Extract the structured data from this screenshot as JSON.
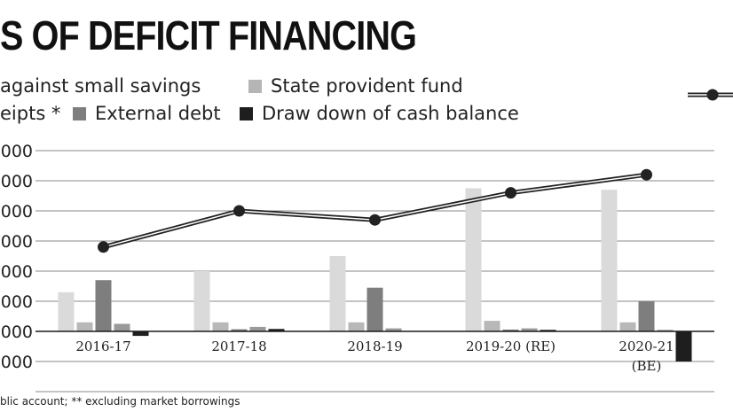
{
  "title": "S OF DEFICIT FINANCING",
  "legend": [
    {
      "key": "small_savings",
      "label": "against small savings",
      "color": "#cfcfcf"
    },
    {
      "key": "state_pf",
      "label": "State provident fund",
      "color": "#b5b5b5"
    },
    {
      "key": "other_receipts",
      "label": "eipts *",
      "color": "#a3a3a3"
    },
    {
      "key": "external_debt",
      "label": "External debt",
      "color": "#7e7e7e"
    },
    {
      "key": "cash_drawdown",
      "label": "Draw down of cash balance",
      "color": "#1e1e1e"
    }
  ],
  "footnote": "blic account; ** excluding market borrowings",
  "chart_data": {
    "type": "bar",
    "categories": [
      "2016-17",
      "2017-18",
      "2018-19",
      "2019-20 (RE)",
      "2020-21 (BE)"
    ],
    "y_tick_labels": [
      "000",
      "0000",
      "0000",
      "0000",
      "0000",
      "0000",
      "0000",
      "000",
      "",
      "0000",
      "0000"
    ],
    "series": [
      {
        "key": "small_savings",
        "name": "against small savings",
        "color": "#dadada",
        "values": [
          13,
          20,
          25,
          47.5,
          47
        ]
      },
      {
        "key": "state_pf",
        "name": "State provident fund",
        "color": "#b8b8b8",
        "values": [
          3,
          3,
          3,
          3.5,
          3
        ]
      },
      {
        "key": "external_debt",
        "name": "External debt",
        "color": "#7e7e7e",
        "values": [
          17,
          0.7,
          14.5,
          0.6,
          10
        ]
      },
      {
        "key": "other_receipts",
        "name": "eipts *",
        "color": "#9a9a9a",
        "values": [
          2.5,
          1.5,
          1,
          1,
          0.5
        ]
      },
      {
        "key": "cash_drawdown",
        "name": "Draw down of cash balance",
        "color": "#1e1e1e",
        "values": [
          -1.5,
          0.8,
          0,
          0.5,
          -10
        ]
      }
    ],
    "line": {
      "color": "#222222",
      "values": [
        28,
        40,
        37,
        46,
        52
      ]
    },
    "ylim": [
      -20,
      60
    ]
  }
}
